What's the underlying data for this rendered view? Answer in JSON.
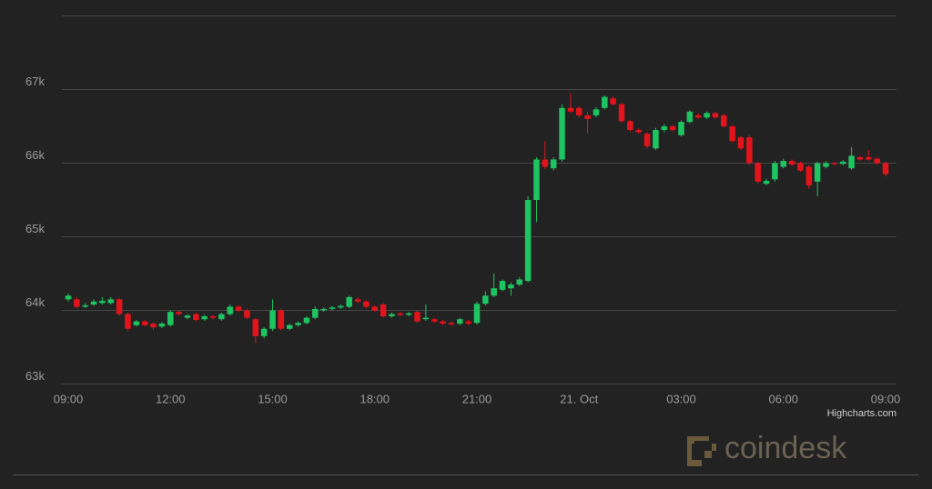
{
  "chart_data": {
    "type": "candlestick",
    "categories": [
      "09:00",
      null,
      null,
      null,
      null,
      null,
      null,
      null,
      null,
      null,
      null,
      null,
      "12:00",
      null,
      null,
      null,
      null,
      null,
      null,
      null,
      null,
      null,
      null,
      null,
      "15:00",
      null,
      null,
      null,
      null,
      null,
      null,
      null,
      null,
      null,
      null,
      null,
      "18:00",
      null,
      null,
      null,
      null,
      null,
      null,
      null,
      null,
      null,
      null,
      null,
      "21:00",
      null,
      null,
      null,
      null,
      null,
      null,
      null,
      null,
      null,
      null,
      null,
      "21. Oct",
      null,
      null,
      null,
      null,
      null,
      null,
      null,
      null,
      null,
      null,
      null,
      "03:00",
      null,
      null,
      null,
      null,
      null,
      null,
      null,
      null,
      null,
      null,
      null,
      "06:00",
      null,
      null,
      null,
      null,
      null,
      null,
      null,
      null,
      null,
      null,
      null,
      "09:00"
    ],
    "open": [
      64150,
      64150,
      64050,
      64080,
      64100,
      64100,
      64150,
      63950,
      63800,
      63850,
      63820,
      63780,
      63800,
      63980,
      63900,
      63950,
      63880,
      63920,
      63880,
      63950,
      64050,
      64000,
      63880,
      63650,
      63750,
      64000,
      63750,
      63800,
      63830,
      63900,
      64000,
      64020,
      64040,
      64050,
      64150,
      64120,
      64050,
      64080,
      63920,
      63960,
      63940,
      63980,
      63880,
      63880,
      63850,
      63830,
      63820,
      63850,
      63830,
      64090,
      64200,
      64280,
      64300,
      64350,
      64400,
      65500,
      66050,
      65930,
      66050,
      66750,
      66750,
      66650,
      66650,
      66750,
      66880,
      66800,
      66570,
      66450,
      66400,
      66200,
      66450,
      66500,
      66380,
      66560,
      66650,
      66620,
      66680,
      66650,
      66500,
      66350,
      66350,
      66000,
      65720,
      65780,
      65950,
      66030,
      66000,
      65950,
      65750,
      65950,
      66000,
      65990,
      65930,
      66080,
      66080,
      66060,
      66000
    ],
    "high": [
      64230,
      64180,
      64100,
      64150,
      64180,
      64180,
      64170,
      63970,
      63870,
      63870,
      63840,
      63840,
      64000,
      64000,
      63950,
      63970,
      63940,
      63940,
      63970,
      64080,
      64070,
      64020,
      63900,
      63770,
      64150,
      64020,
      63820,
      63850,
      63920,
      64050,
      64040,
      64060,
      64080,
      64200,
      64180,
      64140,
      64070,
      64100,
      63970,
      63980,
      63980,
      64000,
      64080,
      63900,
      63870,
      63850,
      63900,
      63870,
      64120,
      64260,
      64500,
      64420,
      64380,
      64450,
      65550,
      66080,
      66300,
      66080,
      66800,
      66950,
      66770,
      66700,
      66760,
      66920,
      66910,
      66820,
      66590,
      66470,
      66420,
      66480,
      66530,
      66520,
      66580,
      66720,
      66680,
      66700,
      66700,
      66670,
      66520,
      66370,
      66380,
      66020,
      65790,
      66030,
      66060,
      66050,
      66020,
      65970,
      66020,
      66030,
      66020,
      66040,
      66220,
      66100,
      66180,
      66080,
      66020
    ],
    "low": [
      64120,
      64030,
      64030,
      64060,
      64080,
      64080,
      63930,
      63720,
      63780,
      63780,
      63740,
      63760,
      63780,
      63930,
      63880,
      63850,
      63860,
      63880,
      63860,
      63930,
      63980,
      63880,
      63550,
      63620,
      63720,
      63730,
      63730,
      63780,
      63810,
      63880,
      63980,
      64000,
      64020,
      64030,
      64100,
      64030,
      63980,
      63900,
      63900,
      63920,
      63920,
      63830,
      63860,
      63830,
      63800,
      63790,
      63800,
      63800,
      63810,
      64070,
      64180,
      64260,
      64200,
      64330,
      64380,
      65200,
      65920,
      65900,
      66020,
      66680,
      66620,
      66400,
      66620,
      66730,
      66780,
      66550,
      66430,
      66400,
      66200,
      66180,
      66420,
      66430,
      66360,
      66540,
      66600,
      66600,
      66600,
      66480,
      66280,
      66180,
      65980,
      65720,
      65700,
      65750,
      65930,
      65960,
      65880,
      65650,
      65550,
      65930,
      65970,
      65970,
      65910,
      66030,
      66030,
      65980,
      65820
    ],
    "close": [
      64200,
      64050,
      64070,
      64120,
      64130,
      64150,
      63950,
      63750,
      63850,
      63800,
      63770,
      63820,
      63980,
      63950,
      63930,
      63870,
      63920,
      63900,
      63950,
      64050,
      64000,
      63900,
      63650,
      63750,
      64000,
      63750,
      63800,
      63830,
      63900,
      64020,
      64020,
      64040,
      64060,
      64180,
      64120,
      64050,
      64000,
      63920,
      63950,
      63940,
      63960,
      63850,
      63900,
      63850,
      63820,
      63810,
      63880,
      63820,
      64090,
      64200,
      64300,
      64400,
      64350,
      64420,
      65500,
      66050,
      65950,
      66050,
      66750,
      66700,
      66650,
      66600,
      66730,
      66900,
      66800,
      66570,
      66450,
      66420,
      66230,
      66450,
      66500,
      66450,
      66560,
      66700,
      66620,
      66680,
      66620,
      66500,
      66300,
      66200,
      66000,
      65750,
      65760,
      66000,
      66030,
      65980,
      65900,
      65700,
      66000,
      66000,
      65990,
      66020,
      66100,
      66050,
      66050,
      66000,
      65850
    ],
    "up_color": "#1fc462",
    "down_color": "#e3131b",
    "ylim": [
      63000,
      68000
    ],
    "yticks": [
      {
        "value": 63000,
        "label": "63k"
      },
      {
        "value": 64000,
        "label": "64k"
      },
      {
        "value": 65000,
        "label": "65k"
      },
      {
        "value": 66000,
        "label": "66k"
      },
      {
        "value": 67000,
        "label": "67k"
      }
    ],
    "grid": true,
    "credits": "Highcharts.com",
    "watermark": "coindesk"
  }
}
